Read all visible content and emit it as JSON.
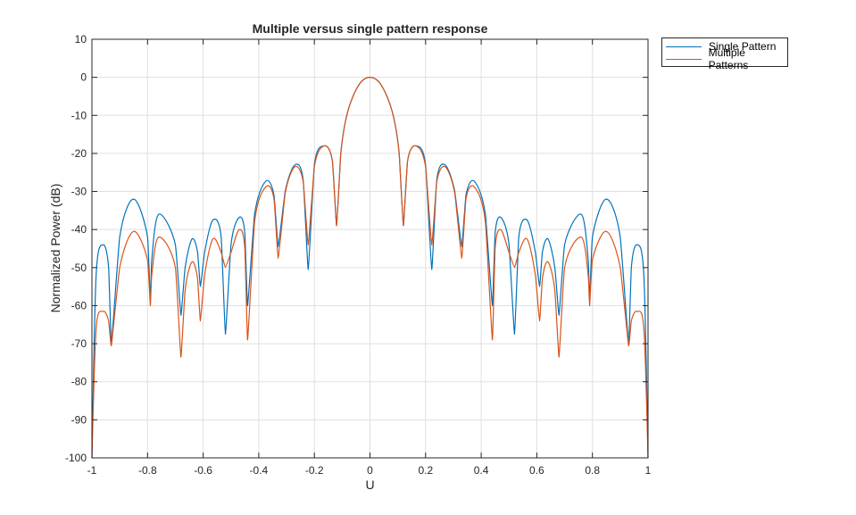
{
  "chart_data": {
    "type": "line",
    "title": "Multiple versus single pattern response",
    "xlabel": "U",
    "ylabel": "Normalized Power (dB)",
    "xlim": [
      -1,
      1
    ],
    "ylim": [
      -100,
      10
    ],
    "xticks": [
      "-1",
      "-0.8",
      "-0.6",
      "-0.4",
      "-0.2",
      "0",
      "0.2",
      "0.4",
      "0.6",
      "0.8",
      "1"
    ],
    "yticks": [
      "10",
      "0",
      "-10",
      "-20",
      "-30",
      "-40",
      "-50",
      "-60",
      "-70",
      "-80",
      "-90",
      "-100"
    ],
    "grid": true,
    "legend_position": "outside top-right",
    "symmetric_about_zero": true,
    "series": [
      {
        "name": "Single Pattern",
        "color": "#0072BD",
        "half_points_u": [
          0,
          0.04,
          0.08,
          0.105,
          0.12,
          0.135,
          0.165,
          0.2,
          0.222,
          0.24,
          0.27,
          0.305,
          0.33,
          0.345,
          0.375,
          0.415,
          0.44,
          0.45,
          0.47,
          0.5,
          0.52,
          0.535,
          0.565,
          0.595,
          0.61,
          0.62,
          0.64,
          0.665,
          0.68,
          0.7,
          0.76,
          0.785,
          0.79,
          0.8,
          0.85,
          0.9,
          0.93,
          0.94,
          0.96,
          0.985,
          1.0
        ],
        "half_points_db": [
          0,
          -2,
          -9,
          -20,
          -39,
          -22,
          -18,
          -23,
          -50.5,
          -27,
          -23,
          -30,
          -44.5,
          -31,
          -27.3,
          -36,
          -60,
          -41,
          -36.8,
          -44,
          -67.5,
          -42,
          -37.5,
          -46,
          -55,
          -46,
          -42.5,
          -50,
          -62.5,
          -44,
          -36,
          -48,
          -59,
          -42,
          -32,
          -42,
          -70,
          -50,
          -44,
          -52,
          -100
        ]
      },
      {
        "name": "Multiple Patterns",
        "color": "#D95319",
        "half_points_u": [
          0,
          0.04,
          0.08,
          0.105,
          0.12,
          0.135,
          0.165,
          0.2,
          0.222,
          0.24,
          0.27,
          0.305,
          0.33,
          0.345,
          0.375,
          0.415,
          0.44,
          0.45,
          0.47,
          0.5,
          0.52,
          0.535,
          0.565,
          0.595,
          0.61,
          0.62,
          0.64,
          0.665,
          0.68,
          0.7,
          0.76,
          0.785,
          0.79,
          0.8,
          0.85,
          0.9,
          0.93,
          0.94,
          0.96,
          0.985,
          1.0
        ],
        "half_points_db": [
          0,
          -2,
          -9,
          -20,
          -39,
          -22,
          -18,
          -23.5,
          -44,
          -27.5,
          -23.5,
          -30.5,
          -47.5,
          -32,
          -28.8,
          -38,
          -69,
          -45,
          -40,
          -46,
          -50,
          -46,
          -42.5,
          -52,
          -64,
          -53,
          -48.5,
          -56,
          -73.5,
          -50,
          -42,
          -52,
          -60,
          -48,
          -40.5,
          -50,
          -70.5,
          -64,
          -61.5,
          -66,
          -100
        ]
      }
    ]
  },
  "legend": {
    "items": [
      {
        "label": "Single Pattern",
        "color": "#0072BD"
      },
      {
        "label": "Multiple Patterns",
        "color": "#D95319"
      }
    ]
  }
}
